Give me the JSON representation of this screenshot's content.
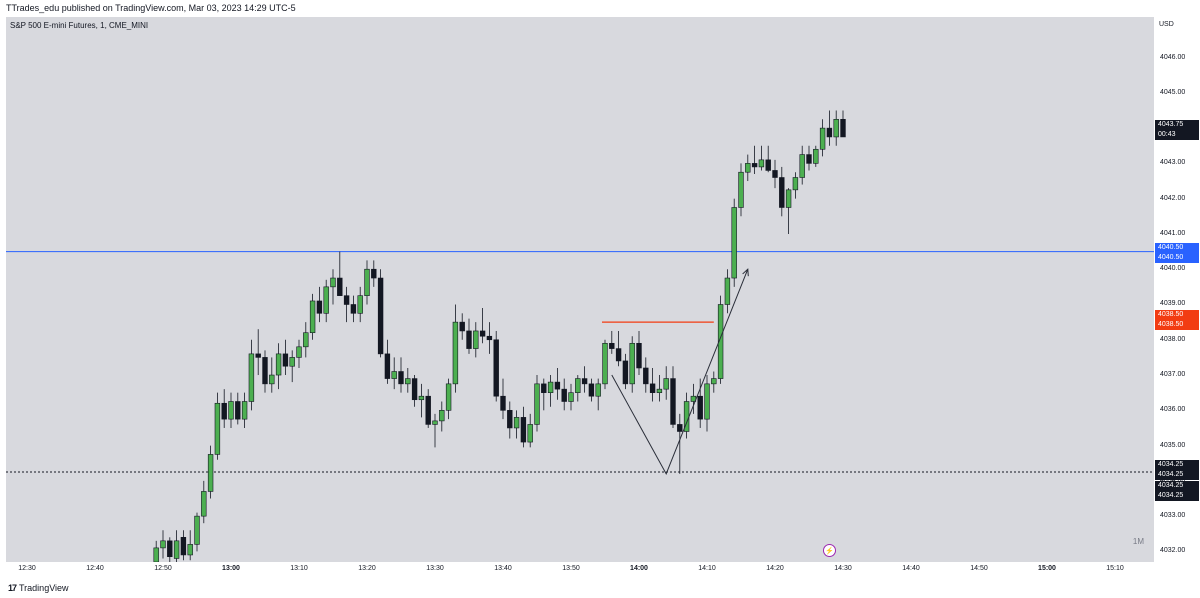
{
  "header": {
    "publisher_text": "TTrades_edu published on TradingView.com, Mar 03, 2023 14:29 UTC-5"
  },
  "legend": {
    "symbol_text": "S&P 500 E-mini Futures, 1, CME_MINI"
  },
  "footer": {
    "logo_text": "TradingView"
  },
  "watermark": {
    "interval_label": "1M"
  },
  "colors": {
    "up": "#4caf50",
    "down": "#131722",
    "hline": "#2962ff",
    "resistance": "#f23c12",
    "background": "#d8d9de"
  },
  "chart_data": {
    "type": "candlestick",
    "currency": "USD",
    "ylim": [
      4031.7,
      4047.15
    ],
    "y_ticks": [
      "4032.00",
      "4033.00",
      "4034.00",
      "4035.00",
      "4036.00",
      "4037.00",
      "4038.00",
      "4039.00",
      "4040.00",
      "4041.00",
      "4042.00",
      "4043.00",
      "4044.00",
      "4045.00",
      "4046.00"
    ],
    "x_ticks": [
      {
        "label": "12:30",
        "minute": -90,
        "major": false
      },
      {
        "label": "12:40",
        "minute": -80,
        "major": false
      },
      {
        "label": "12:50",
        "minute": -70,
        "major": false
      },
      {
        "label": "13:00",
        "minute": -60,
        "major": true
      },
      {
        "label": "13:10",
        "minute": -50,
        "major": false
      },
      {
        "label": "13:20",
        "minute": -40,
        "major": false
      },
      {
        "label": "13:30",
        "minute": -30,
        "major": false
      },
      {
        "label": "13:40",
        "minute": -20,
        "major": false
      },
      {
        "label": "13:50",
        "minute": -10,
        "major": false
      },
      {
        "label": "14:00",
        "minute": 0,
        "major": true
      },
      {
        "label": "14:10",
        "minute": 10,
        "major": false
      },
      {
        "label": "14:20",
        "minute": 20,
        "major": false
      },
      {
        "label": "14:30",
        "minute": 30,
        "major": false
      },
      {
        "label": "14:40",
        "minute": 40,
        "major": false
      },
      {
        "label": "14:50",
        "minute": 50,
        "major": false
      },
      {
        "label": "15:00",
        "minute": 60,
        "major": true
      },
      {
        "label": "15:10",
        "minute": 70,
        "major": false
      }
    ],
    "candles": [
      {
        "t": "12:49",
        "o": 4031.7,
        "h": 4032.3,
        "l": 4031.7,
        "c": 4032.1
      },
      {
        "t": "12:50",
        "o": 4032.1,
        "h": 4032.6,
        "l": 4031.8,
        "c": 4032.3
      },
      {
        "t": "12:51",
        "o": 4032.3,
        "h": 4032.4,
        "l": 4031.7,
        "c": 4031.85
      },
      {
        "t": "12:52",
        "o": 4031.8,
        "h": 4032.6,
        "l": 4031.7,
        "c": 4032.3
      },
      {
        "t": "12:53",
        "o": 4032.4,
        "h": 4032.6,
        "l": 4031.75,
        "c": 4031.9
      },
      {
        "t": "12:54",
        "o": 4031.9,
        "h": 4032.6,
        "l": 4031.75,
        "c": 4032.2
      },
      {
        "t": "12:55",
        "o": 4032.2,
        "h": 4033.1,
        "l": 4032.0,
        "c": 4033.0
      },
      {
        "t": "12:56",
        "o": 4033.0,
        "h": 4034.0,
        "l": 4032.8,
        "c": 4033.7
      },
      {
        "t": "12:57",
        "o": 4033.7,
        "h": 4035.0,
        "l": 4033.5,
        "c": 4034.75
      },
      {
        "t": "12:58",
        "o": 4034.75,
        "h": 4036.5,
        "l": 4034.6,
        "c": 4036.2
      },
      {
        "t": "12:59",
        "o": 4036.2,
        "h": 4036.6,
        "l": 4035.5,
        "c": 4035.75
      },
      {
        "t": "13:00",
        "o": 4035.75,
        "h": 4036.5,
        "l": 4035.5,
        "c": 4036.25
      },
      {
        "t": "13:01",
        "o": 4036.25,
        "h": 4036.5,
        "l": 4035.6,
        "c": 4035.75
      },
      {
        "t": "13:02",
        "o": 4035.75,
        "h": 4036.5,
        "l": 4035.5,
        "c": 4036.25
      },
      {
        "t": "13:03",
        "o": 4036.25,
        "h": 4038.0,
        "l": 4036.0,
        "c": 4037.6
      },
      {
        "t": "13:04",
        "o": 4037.6,
        "h": 4038.3,
        "l": 4037.0,
        "c": 4037.5
      },
      {
        "t": "13:05",
        "o": 4037.5,
        "h": 4037.7,
        "l": 4036.5,
        "c": 4036.75
      },
      {
        "t": "13:06",
        "o": 4036.75,
        "h": 4037.5,
        "l": 4036.5,
        "c": 4037.0
      },
      {
        "t": "13:07",
        "o": 4037.0,
        "h": 4037.9,
        "l": 4036.6,
        "c": 4037.6
      },
      {
        "t": "13:08",
        "o": 4037.6,
        "h": 4038.0,
        "l": 4037.0,
        "c": 4037.25
      },
      {
        "t": "13:09",
        "o": 4037.25,
        "h": 4037.7,
        "l": 4036.8,
        "c": 4037.5
      },
      {
        "t": "13:10",
        "o": 4037.5,
        "h": 4038.0,
        "l": 4037.2,
        "c": 4037.8
      },
      {
        "t": "13:11",
        "o": 4037.8,
        "h": 4038.5,
        "l": 4037.5,
        "c": 4038.2
      },
      {
        "t": "13:12",
        "o": 4038.2,
        "h": 4039.3,
        "l": 4038.0,
        "c": 4039.1
      },
      {
        "t": "13:13",
        "o": 4039.1,
        "h": 4039.5,
        "l": 4038.5,
        "c": 4038.75
      },
      {
        "t": "13:14",
        "o": 4038.75,
        "h": 4039.7,
        "l": 4038.5,
        "c": 4039.5
      },
      {
        "t": "13:15",
        "o": 4039.5,
        "h": 4040.0,
        "l": 4039.0,
        "c": 4039.75
      },
      {
        "t": "13:16",
        "o": 4039.75,
        "h": 4040.5,
        "l": 4039.25,
        "c": 4039.25
      },
      {
        "t": "13:17",
        "o": 4039.25,
        "h": 4039.5,
        "l": 4038.5,
        "c": 4039.0
      },
      {
        "t": "13:18",
        "o": 4039.0,
        "h": 4039.25,
        "l": 4038.5,
        "c": 4038.75
      },
      {
        "t": "13:19",
        "o": 4038.75,
        "h": 4039.5,
        "l": 4038.5,
        "c": 4039.25
      },
      {
        "t": "13:20",
        "o": 4039.25,
        "h": 4040.25,
        "l": 4039.0,
        "c": 4040.0
      },
      {
        "t": "13:21",
        "o": 4040.0,
        "h": 4040.25,
        "l": 4039.5,
        "c": 4039.75
      },
      {
        "t": "13:22",
        "o": 4039.75,
        "h": 4040.0,
        "l": 4037.5,
        "c": 4037.6
      },
      {
        "t": "13:23",
        "o": 4037.6,
        "h": 4038.0,
        "l": 4036.75,
        "c": 4036.9
      },
      {
        "t": "13:24",
        "o": 4036.9,
        "h": 4037.5,
        "l": 4036.6,
        "c": 4037.1
      },
      {
        "t": "13:25",
        "o": 4037.1,
        "h": 4037.5,
        "l": 4036.5,
        "c": 4036.75
      },
      {
        "t": "13:26",
        "o": 4036.75,
        "h": 4037.2,
        "l": 4036.5,
        "c": 4036.9
      },
      {
        "t": "13:27",
        "o": 4036.9,
        "h": 4037.0,
        "l": 4036.1,
        "c": 4036.3
      },
      {
        "t": "13:28",
        "o": 4036.3,
        "h": 4036.75,
        "l": 4035.8,
        "c": 4036.4
      },
      {
        "t": "13:29",
        "o": 4036.4,
        "h": 4036.6,
        "l": 4035.5,
        "c": 4035.6
      },
      {
        "t": "13:30",
        "o": 4035.6,
        "h": 4035.9,
        "l": 4034.95,
        "c": 4035.7
      },
      {
        "t": "13:31",
        "o": 4035.7,
        "h": 4036.25,
        "l": 4035.4,
        "c": 4036.0
      },
      {
        "t": "13:32",
        "o": 4036.0,
        "h": 4036.9,
        "l": 4035.75,
        "c": 4036.75
      },
      {
        "t": "13:33",
        "o": 4036.75,
        "h": 4039.0,
        "l": 4036.5,
        "c": 4038.5
      },
      {
        "t": "13:34",
        "o": 4038.5,
        "h": 4038.75,
        "l": 4038.0,
        "c": 4038.25
      },
      {
        "t": "13:35",
        "o": 4038.25,
        "h": 4038.6,
        "l": 4037.6,
        "c": 4037.75
      },
      {
        "t": "13:36",
        "o": 4037.75,
        "h": 4038.5,
        "l": 4037.5,
        "c": 4038.25
      },
      {
        "t": "13:37",
        "o": 4038.25,
        "h": 4038.9,
        "l": 4037.9,
        "c": 4038.1
      },
      {
        "t": "13:38",
        "o": 4038.1,
        "h": 4038.5,
        "l": 4037.6,
        "c": 4038.0
      },
      {
        "t": "13:39",
        "o": 4038.0,
        "h": 4038.25,
        "l": 4036.25,
        "c": 4036.4
      },
      {
        "t": "13:40",
        "o": 4036.4,
        "h": 4036.9,
        "l": 4035.75,
        "c": 4036.0
      },
      {
        "t": "13:41",
        "o": 4036.0,
        "h": 4036.25,
        "l": 4035.2,
        "c": 4035.5
      },
      {
        "t": "13:42",
        "o": 4035.5,
        "h": 4036.0,
        "l": 4035.2,
        "c": 4035.8
      },
      {
        "t": "13:43",
        "o": 4035.8,
        "h": 4036.1,
        "l": 4034.95,
        "c": 4035.1
      },
      {
        "t": "13:44",
        "o": 4035.1,
        "h": 4035.9,
        "l": 4034.95,
        "c": 4035.6
      },
      {
        "t": "13:45",
        "o": 4035.6,
        "h": 4037.0,
        "l": 4035.4,
        "c": 4036.75
      },
      {
        "t": "13:46",
        "o": 4036.75,
        "h": 4036.9,
        "l": 4036.0,
        "c": 4036.5
      },
      {
        "t": "13:47",
        "o": 4036.5,
        "h": 4037.0,
        "l": 4036.1,
        "c": 4036.8
      },
      {
        "t": "13:48",
        "o": 4036.8,
        "h": 4037.2,
        "l": 4036.3,
        "c": 4036.6
      },
      {
        "t": "13:49",
        "o": 4036.6,
        "h": 4036.9,
        "l": 4036.0,
        "c": 4036.25
      },
      {
        "t": "13:50",
        "o": 4036.25,
        "h": 4036.75,
        "l": 4036.0,
        "c": 4036.5
      },
      {
        "t": "13:51",
        "o": 4036.5,
        "h": 4037.0,
        "l": 4036.25,
        "c": 4036.9
      },
      {
        "t": "13:52",
        "o": 4036.9,
        "h": 4037.25,
        "l": 4036.5,
        "c": 4036.75
      },
      {
        "t": "13:53",
        "o": 4036.75,
        "h": 4036.9,
        "l": 4036.25,
        "c": 4036.4
      },
      {
        "t": "13:54",
        "o": 4036.4,
        "h": 4036.9,
        "l": 4036.0,
        "c": 4036.75
      },
      {
        "t": "13:55",
        "o": 4036.75,
        "h": 4038.0,
        "l": 4036.6,
        "c": 4037.9
      },
      {
        "t": "13:56",
        "o": 4037.9,
        "h": 4038.25,
        "l": 4037.6,
        "c": 4037.75
      },
      {
        "t": "13:57",
        "o": 4037.75,
        "h": 4038.25,
        "l": 4037.25,
        "c": 4037.4
      },
      {
        "t": "13:58",
        "o": 4037.4,
        "h": 4037.6,
        "l": 4036.6,
        "c": 4036.75
      },
      {
        "t": "13:59",
        "o": 4036.75,
        "h": 4038.1,
        "l": 4036.5,
        "c": 4037.9
      },
      {
        "t": "14:00",
        "o": 4037.9,
        "h": 4038.25,
        "l": 4037.0,
        "c": 4037.2
      },
      {
        "t": "14:01",
        "o": 4037.2,
        "h": 4037.5,
        "l": 4036.5,
        "c": 4036.75
      },
      {
        "t": "14:02",
        "o": 4036.75,
        "h": 4037.2,
        "l": 4036.25,
        "c": 4036.5
      },
      {
        "t": "14:03",
        "o": 4036.5,
        "h": 4037.0,
        "l": 4036.25,
        "c": 4036.6
      },
      {
        "t": "14:04",
        "o": 4036.6,
        "h": 4037.25,
        "l": 4036.3,
        "c": 4036.9
      },
      {
        "t": "14:05",
        "o": 4036.9,
        "h": 4037.25,
        "l": 4035.5,
        "c": 4035.6
      },
      {
        "t": "14:06",
        "o": 4035.6,
        "h": 4035.9,
        "l": 4034.2,
        "c": 4035.4
      },
      {
        "t": "14:07",
        "o": 4035.4,
        "h": 4036.5,
        "l": 4035.2,
        "c": 4036.25
      },
      {
        "t": "14:08",
        "o": 4036.25,
        "h": 4036.75,
        "l": 4035.9,
        "c": 4036.4
      },
      {
        "t": "14:09",
        "o": 4036.4,
        "h": 4036.9,
        "l": 4035.5,
        "c": 4035.75
      },
      {
        "t": "14:10",
        "o": 4035.75,
        "h": 4037.0,
        "l": 4035.4,
        "c": 4036.75
      },
      {
        "t": "14:11",
        "o": 4036.75,
        "h": 4037.1,
        "l": 4036.5,
        "c": 4036.9
      },
      {
        "t": "14:12",
        "o": 4036.9,
        "h": 4039.25,
        "l": 4036.75,
        "c": 4039.0
      },
      {
        "t": "14:13",
        "o": 4039.0,
        "h": 4040.0,
        "l": 4038.75,
        "c": 4039.75
      },
      {
        "t": "14:14",
        "o": 4039.75,
        "h": 4042.0,
        "l": 4039.5,
        "c": 4041.75
      },
      {
        "t": "14:15",
        "o": 4041.75,
        "h": 4043.0,
        "l": 4041.5,
        "c": 4042.75
      },
      {
        "t": "14:16",
        "o": 4042.75,
        "h": 4043.25,
        "l": 4042.5,
        "c": 4043.0
      },
      {
        "t": "14:17",
        "o": 4043.0,
        "h": 4043.5,
        "l": 4042.7,
        "c": 4042.9
      },
      {
        "t": "14:18",
        "o": 4042.9,
        "h": 4043.5,
        "l": 4042.8,
        "c": 4043.1
      },
      {
        "t": "14:19",
        "o": 4043.1,
        "h": 4043.5,
        "l": 4042.75,
        "c": 4042.8
      },
      {
        "t": "14:20",
        "o": 4042.8,
        "h": 4043.1,
        "l": 4042.3,
        "c": 4042.6
      },
      {
        "t": "14:21",
        "o": 4042.6,
        "h": 4042.9,
        "l": 4041.5,
        "c": 4041.75
      },
      {
        "t": "14:22",
        "o": 4041.75,
        "h": 4042.3,
        "l": 4041.0,
        "c": 4042.25
      },
      {
        "t": "14:23",
        "o": 4042.25,
        "h": 4042.75,
        "l": 4042.0,
        "c": 4042.6
      },
      {
        "t": "14:24",
        "o": 4042.6,
        "h": 4043.5,
        "l": 4042.4,
        "c": 4043.25
      },
      {
        "t": "14:25",
        "o": 4043.25,
        "h": 4043.5,
        "l": 4042.8,
        "c": 4043.0
      },
      {
        "t": "14:26",
        "o": 4043.0,
        "h": 4043.5,
        "l": 4042.9,
        "c": 4043.4
      },
      {
        "t": "14:27",
        "o": 4043.4,
        "h": 4044.25,
        "l": 4043.2,
        "c": 4044.0
      },
      {
        "t": "14:28",
        "o": 4044.0,
        "h": 4044.5,
        "l": 4043.5,
        "c": 4043.75
      },
      {
        "t": "14:29",
        "o": 4043.75,
        "h": 4044.5,
        "l": 4043.5,
        "c": 4044.25
      },
      {
        "t": "14:30",
        "o": 4044.25,
        "h": 4044.5,
        "l": 4043.75,
        "c": 4043.75
      }
    ],
    "horizontal_lines": [
      {
        "price": 4040.5,
        "style": "solid",
        "color": "#2962ff"
      },
      {
        "price": 4034.25,
        "style": "dotted",
        "color": "#131722"
      }
    ],
    "resistance_line": {
      "price": 4038.5,
      "from": "13:55",
      "to": "14:11",
      "color": "#f23c12"
    },
    "path_drawing": [
      {
        "t": "13:56",
        "p": 4037.0
      },
      {
        "t": "14:04",
        "p": 4034.2
      },
      {
        "t": "14:16",
        "p": 4040.0
      }
    ],
    "price_tags": [
      {
        "text": "4043.75",
        "bg": "#131722"
      },
      {
        "text": "00:43",
        "bg": "#131722"
      },
      {
        "text": "4040.50",
        "bg": "#2962ff"
      },
      {
        "text": "4040.50",
        "bg": "#2962ff"
      },
      {
        "text": "4038.50",
        "bg": "#f23c12"
      },
      {
        "text": "4038.50",
        "bg": "#f23c12"
      },
      {
        "text": "4034.25",
        "bg": "#131722"
      },
      {
        "text": "4034.25",
        "bg": "#131722"
      },
      {
        "text": "4034.25",
        "bg": "#131722"
      },
      {
        "text": "4034.25",
        "bg": "#131722"
      }
    ]
  }
}
